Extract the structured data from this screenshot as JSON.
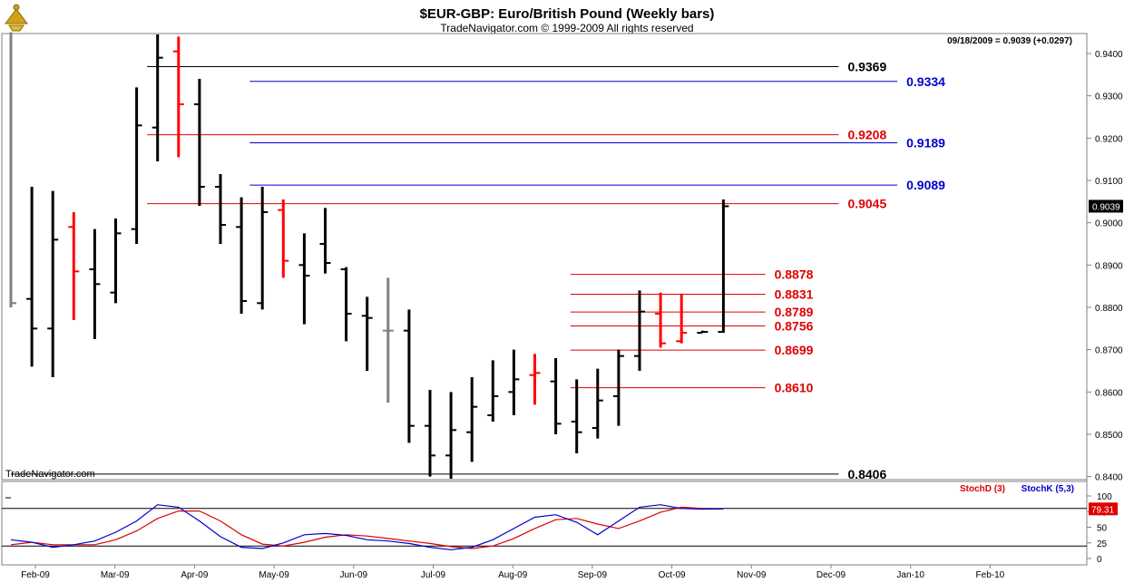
{
  "header": {
    "title": "$EUR-GBP:  Euro/British Pound  (Weekly bars)",
    "subtitle": "TradeNavigator.com © 1999-2009 All rights reserved",
    "last_info": "09/18/2009 = 0.9039 (+0.0297)",
    "watermark": "TradeNavigator.com"
  },
  "colors": {
    "up": "#000000",
    "down": "#ff0000",
    "neutral": "#808080",
    "blue": "#0000cc",
    "black": "#000000",
    "red": "#e00000",
    "stochD": "#dd0000",
    "stochK": "#0000cc"
  },
  "chart_data": {
    "type": "ohlc",
    "x_labels": [
      "Feb-09",
      "Mar-09",
      "Apr-09",
      "May-09",
      "Jun-09",
      "Jul-09",
      "Aug-09",
      "Sep-09",
      "Oct-09",
      "Nov-09",
      "Dec-09",
      "Jan-10",
      "Feb-10"
    ],
    "price_axis": {
      "min": 0.8395,
      "max": 0.9445,
      "ticks": [
        "0.9400",
        "0.9300",
        "0.9200",
        "0.9100",
        "0.9000",
        "0.8900",
        "0.8800",
        "0.8700",
        "0.8600",
        "0.8500",
        "0.8400"
      ],
      "last_price": "0.9039"
    },
    "bars": [
      {
        "date": "2009-01-23",
        "o": 0.835,
        "h": 0.945,
        "l": 0.88,
        "c": 0.881,
        "color": "neutral"
      },
      {
        "date": "2009-01-30",
        "o": 0.882,
        "h": 0.9085,
        "l": 0.866,
        "c": 0.875,
        "color": "up"
      },
      {
        "date": "2009-02-06",
        "o": 0.875,
        "h": 0.9075,
        "l": 0.8635,
        "c": 0.896,
        "color": "up"
      },
      {
        "date": "2009-02-13",
        "o": 0.899,
        "h": 0.9025,
        "l": 0.877,
        "c": 0.8885,
        "color": "down"
      },
      {
        "date": "2009-02-20",
        "o": 0.889,
        "h": 0.8985,
        "l": 0.8725,
        "c": 0.8855,
        "color": "up"
      },
      {
        "date": "2009-02-27",
        "o": 0.8835,
        "h": 0.901,
        "l": 0.881,
        "c": 0.8975,
        "color": "up"
      },
      {
        "date": "2009-03-06",
        "o": 0.8985,
        "h": 0.932,
        "l": 0.895,
        "c": 0.923,
        "color": "up"
      },
      {
        "date": "2009-03-13",
        "o": 0.9225,
        "h": 0.9445,
        "l": 0.9145,
        "c": 0.939,
        "color": "up"
      },
      {
        "date": "2009-03-20",
        "o": 0.9405,
        "h": 0.944,
        "l": 0.9155,
        "c": 0.928,
        "color": "down"
      },
      {
        "date": "2009-03-27",
        "o": 0.928,
        "h": 0.934,
        "l": 0.904,
        "c": 0.9085,
        "color": "up"
      },
      {
        "date": "2009-04-03",
        "o": 0.9085,
        "h": 0.9115,
        "l": 0.895,
        "c": 0.8995,
        "color": "up"
      },
      {
        "date": "2009-04-10",
        "o": 0.899,
        "h": 0.906,
        "l": 0.8785,
        "c": 0.8815,
        "color": "up"
      },
      {
        "date": "2009-04-17",
        "o": 0.881,
        "h": 0.9085,
        "l": 0.8795,
        "c": 0.9025,
        "color": "up"
      },
      {
        "date": "2009-04-24",
        "o": 0.903,
        "h": 0.9055,
        "l": 0.887,
        "c": 0.891,
        "color": "down"
      },
      {
        "date": "2009-05-01",
        "o": 0.89,
        "h": 0.8975,
        "l": 0.876,
        "c": 0.8875,
        "color": "up"
      },
      {
        "date": "2009-05-08",
        "o": 0.895,
        "h": 0.9035,
        "l": 0.888,
        "c": 0.8905,
        "color": "up"
      },
      {
        "date": "2009-05-15",
        "o": 0.889,
        "h": 0.8895,
        "l": 0.872,
        "c": 0.8785,
        "color": "up"
      },
      {
        "date": "2009-05-22",
        "o": 0.878,
        "h": 0.8825,
        "l": 0.865,
        "c": 0.8775,
        "color": "up"
      },
      {
        "date": "2009-05-29",
        "o": 0.8745,
        "h": 0.887,
        "l": 0.8575,
        "c": 0.8745,
        "color": "neutral"
      },
      {
        "date": "2009-06-05",
        "o": 0.8745,
        "h": 0.8795,
        "l": 0.848,
        "c": 0.852,
        "color": "up"
      },
      {
        "date": "2009-06-12",
        "o": 0.852,
        "h": 0.8605,
        "l": 0.84,
        "c": 0.845,
        "color": "up"
      },
      {
        "date": "2009-06-19",
        "o": 0.845,
        "h": 0.86,
        "l": 0.8395,
        "c": 0.851,
        "color": "up"
      },
      {
        "date": "2009-06-26",
        "o": 0.8505,
        "h": 0.8635,
        "l": 0.8435,
        "c": 0.8565,
        "color": "up"
      },
      {
        "date": "2009-07-03",
        "o": 0.8545,
        "h": 0.8675,
        "l": 0.853,
        "c": 0.859,
        "color": "up"
      },
      {
        "date": "2009-07-10",
        "o": 0.86,
        "h": 0.87,
        "l": 0.8545,
        "c": 0.863,
        "color": "up"
      },
      {
        "date": "2009-07-17",
        "o": 0.864,
        "h": 0.869,
        "l": 0.857,
        "c": 0.8645,
        "color": "down"
      },
      {
        "date": "2009-07-24",
        "o": 0.8625,
        "h": 0.868,
        "l": 0.85,
        "c": 0.8525,
        "color": "up"
      },
      {
        "date": "2009-07-31",
        "o": 0.853,
        "h": 0.863,
        "l": 0.8455,
        "c": 0.8505,
        "color": "up"
      },
      {
        "date": "2009-08-07",
        "o": 0.8515,
        "h": 0.8655,
        "l": 0.849,
        "c": 0.858,
        "color": "up"
      },
      {
        "date": "2009-08-14",
        "o": 0.859,
        "h": 0.87,
        "l": 0.852,
        "c": 0.8685,
        "color": "up"
      },
      {
        "date": "2009-08-21",
        "o": 0.8685,
        "h": 0.884,
        "l": 0.865,
        "c": 0.879,
        "color": "up"
      },
      {
        "date": "2009-08-28",
        "o": 0.8785,
        "h": 0.8835,
        "l": 0.8705,
        "c": 0.8715,
        "color": "down"
      },
      {
        "date": "2009-09-04",
        "o": 0.872,
        "h": 0.883,
        "l": 0.8715,
        "c": 0.874,
        "color": "down"
      },
      {
        "date": "2009-09-11",
        "o": 0.874,
        "h": 0.8745,
        "l": 0.874,
        "c": 0.8742,
        "color": "up"
      },
      {
        "date": "2009-09-18",
        "o": 0.8742,
        "h": 0.9055,
        "l": 0.874,
        "c": 0.9039,
        "color": "up"
      }
    ],
    "levels": [
      {
        "label": "0.9369",
        "value": 0.9369,
        "color": "black",
        "x_start_week": 6.5,
        "x_end_week": 39.5,
        "text_color": "black"
      },
      {
        "label": "0.9334",
        "value": 0.9334,
        "color": "blue",
        "x_start_week": 11.4,
        "x_end_week": 42.3,
        "text_color": "blue"
      },
      {
        "label": "0.9208",
        "value": 0.9208,
        "color": "red",
        "x_start_week": 6.5,
        "x_end_week": 39.5,
        "text_color": "red"
      },
      {
        "label": "0.9189",
        "value": 0.9189,
        "color": "blue",
        "x_start_week": 11.4,
        "x_end_week": 42.3,
        "text_color": "blue"
      },
      {
        "label": "0.9089",
        "value": 0.9089,
        "color": "blue",
        "x_start_week": 11.4,
        "x_end_week": 42.3,
        "text_color": "blue"
      },
      {
        "label": "0.9045",
        "value": 0.9045,
        "color": "red",
        "x_start_week": 6.5,
        "x_end_week": 39.5,
        "text_color": "red"
      },
      {
        "label": "0.8878",
        "value": 0.8878,
        "color": "red",
        "x_start_week": 26.7,
        "x_end_week": 36.0,
        "text_color": "red"
      },
      {
        "label": "0.8831",
        "value": 0.8831,
        "color": "red",
        "x_start_week": 26.7,
        "x_end_week": 36.0,
        "text_color": "red"
      },
      {
        "label": "0.8789",
        "value": 0.8789,
        "color": "red",
        "x_start_week": 26.7,
        "x_end_week": 36.0,
        "text_color": "red"
      },
      {
        "label": "0.8756",
        "value": 0.8756,
        "color": "red",
        "x_start_week": 26.7,
        "x_end_week": 36.0,
        "text_color": "red"
      },
      {
        "label": "0.8699",
        "value": 0.8699,
        "color": "red",
        "x_start_week": 26.7,
        "x_end_week": 36.0,
        "text_color": "red"
      },
      {
        "label": "0.8610",
        "value": 0.861,
        "color": "red",
        "x_start_week": 26.7,
        "x_end_week": 36.0,
        "text_color": "red"
      },
      {
        "label": "0.8406",
        "value": 0.8406,
        "color": "black",
        "x_start_week": 0.0,
        "x_end_week": 39.5,
        "text_color": "black"
      }
    ],
    "stochastic": {
      "legend_d": "StochD (3)",
      "legend_k": "StochK (5,3)",
      "last_value": "79.31",
      "ticks": [
        "100",
        "75",
        "50",
        "25",
        "0"
      ],
      "ref_lines": [
        80,
        20
      ],
      "min": 0,
      "max": 100,
      "k": [
        30,
        26,
        18,
        22,
        28,
        42,
        60,
        86,
        82,
        60,
        35,
        18,
        16,
        25,
        38,
        40,
        37,
        30,
        28,
        24,
        18,
        14,
        18,
        30,
        48,
        66,
        70,
        58,
        38,
        60,
        82,
        86,
        80,
        79,
        79.31
      ],
      "d": [
        22,
        26,
        22,
        22,
        22,
        30,
        44,
        64,
        76,
        76,
        60,
        38,
        23,
        20,
        26,
        34,
        38,
        36,
        32,
        28,
        24,
        19,
        16,
        20,
        32,
        48,
        62,
        64,
        55,
        48,
        60,
        74,
        82,
        80,
        79.31
      ]
    }
  }
}
